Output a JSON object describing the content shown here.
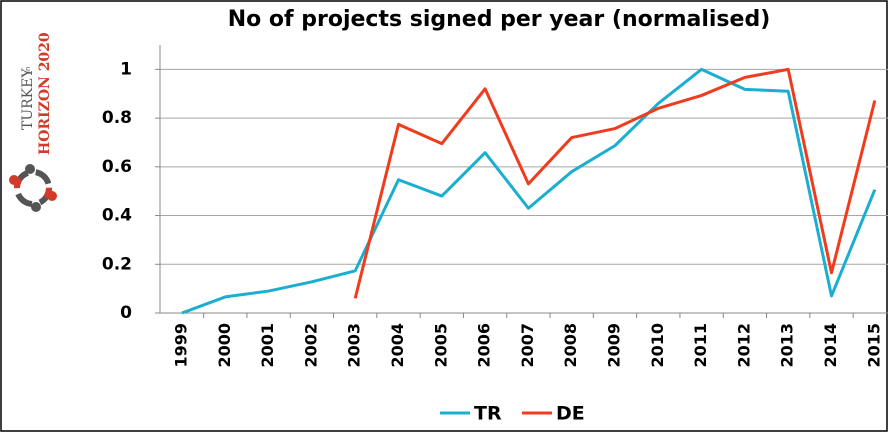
{
  "logo": {
    "line1": "TURKEY",
    "line2": "in",
    "line3": "HORIZON 2020"
  },
  "chart_data": {
    "type": "line",
    "title": "No of projects signed per year (normalised)",
    "categories": [
      "1999",
      "2000",
      "2001",
      "2002",
      "2003",
      "2004",
      "2005",
      "2006",
      "2007",
      "2008",
      "2009",
      "2010",
      "2011",
      "2012",
      "2013",
      "2014",
      "2015"
    ],
    "series": [
      {
        "name": "TR",
        "color": "#1aafd0",
        "values": [
          0,
          0.066,
          0.09,
          0.128,
          0.173,
          0.547,
          0.48,
          0.658,
          0.43,
          0.58,
          0.687,
          0.86,
          1.0,
          0.918,
          0.91,
          0.07,
          0.506
        ]
      },
      {
        "name": "DE",
        "color": "#f03c1e",
        "values": [
          null,
          null,
          null,
          null,
          0.06,
          0.774,
          0.695,
          0.92,
          0.53,
          0.72,
          0.757,
          0.84,
          0.893,
          0.967,
          1.0,
          0.165,
          0.872
        ]
      }
    ],
    "ylim": [
      0,
      1.1
    ],
    "yticks": [
      0,
      0.2,
      0.4,
      0.6,
      0.8,
      1
    ],
    "grid": true,
    "legend": "bottom"
  }
}
